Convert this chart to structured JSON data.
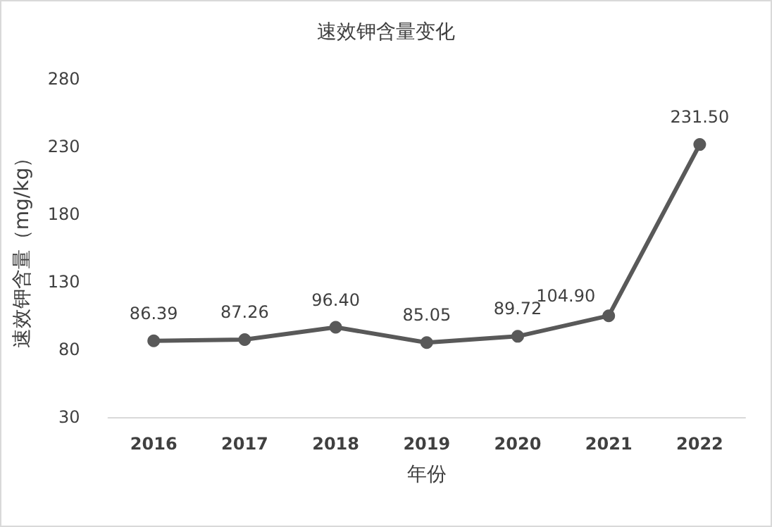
{
  "chart_data": {
    "type": "line",
    "title": "速效钾含量变化",
    "xlabel": "年份",
    "ylabel": "速效钾含量（mg/kg）",
    "categories": [
      "2016",
      "2017",
      "2018",
      "2019",
      "2020",
      "2021",
      "2022"
    ],
    "series": [
      {
        "color": "#595959",
        "values": [
          86.39,
          87.26,
          96.4,
          85.05,
          89.72,
          104.9,
          231.5
        ],
        "value_labels": [
          "86.39",
          "87.26",
          "96.40",
          "85.05",
          "89.72",
          "104.90",
          "231.50"
        ]
      }
    ],
    "ylim": [
      30,
      280
    ],
    "yticks": [
      30,
      80,
      130,
      180,
      230,
      280
    ],
    "grid": false,
    "marker": "circle",
    "line_style": "solid"
  }
}
